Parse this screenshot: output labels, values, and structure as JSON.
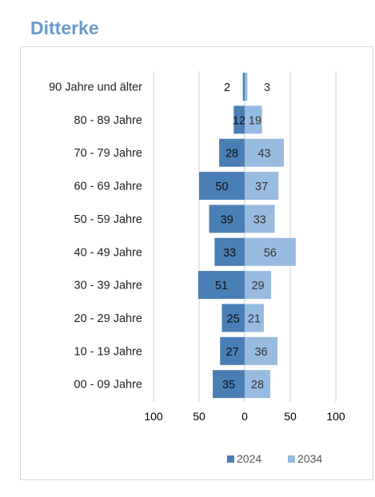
{
  "page": {
    "title": "Ditterke"
  },
  "colors": {
    "series_2024": "#4a7fb5",
    "series_2034": "#98bbe0",
    "title": "#6a9bc8",
    "grid": "#d9d9d9"
  },
  "chart_data": {
    "type": "bar",
    "orientation": "horizontal-population-pyramid",
    "categories": [
      "90 Jahre und älter",
      "80 - 89 Jahre",
      "70 - 79 Jahre",
      "60 - 69 Jahre",
      "50 - 59 Jahre",
      "40 - 49 Jahre",
      "30 - 39 Jahre",
      "20 - 29 Jahre",
      "10 - 19 Jahre",
      "00 - 09 Jahre"
    ],
    "series": [
      {
        "name": "2024",
        "side": "left",
        "values": [
          2,
          12,
          28,
          50,
          39,
          33,
          51,
          25,
          27,
          35
        ]
      },
      {
        "name": "2034",
        "side": "right",
        "values": [
          3,
          19,
          43,
          37,
          33,
          56,
          29,
          21,
          36,
          28
        ]
      }
    ],
    "x_ticks": [
      "100",
      "50",
      "0",
      "50",
      "100"
    ],
    "xlim": [
      -100,
      100
    ],
    "grid": true,
    "legend_position": "bottom-right"
  }
}
